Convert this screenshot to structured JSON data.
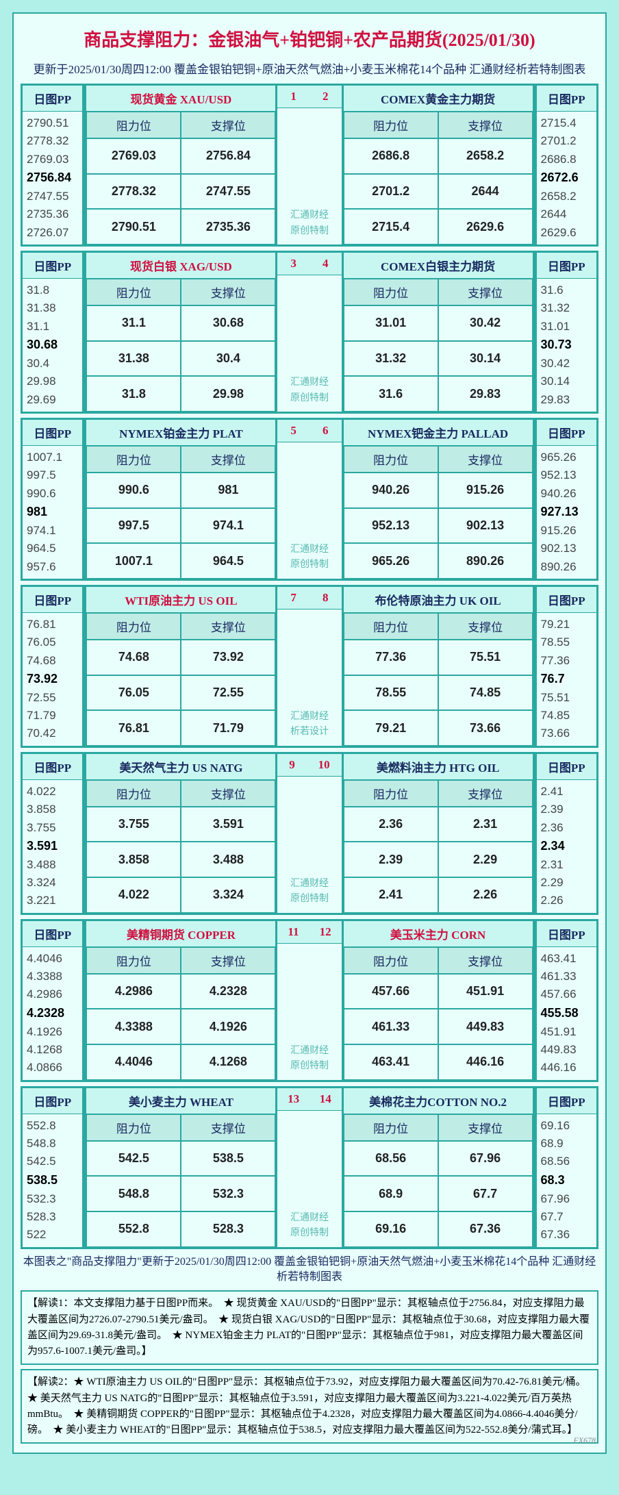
{
  "title": "商品支撑阻力：金银油气+铂钯铜+农产品期货(2025/01/30)",
  "subtitle": "更新于2025/01/30周四12:00  覆盖金银铂钯铜+原油天然气燃油+小麦玉米棉花14个品种  汇通财经析若特制图表",
  "footer_note": "本图表之\"商品支撑阻力\"更新于2025/01/30周四12:00 覆盖金银铂钯铜+原油天然气燃油+小麦玉米棉花14个品种 汇通财经析若特制图表",
  "labels": {
    "pp_header": "日图PP",
    "res": "阻力位",
    "sup": "支撑位",
    "wm1": "汇通财经",
    "wm2": "原创特制",
    "wm2b": "析若设计"
  },
  "br_watermark": "FX678",
  "pairs": [
    {
      "nums": [
        "1",
        "2"
      ],
      "left": {
        "name": "现货黄金 XAU/USD",
        "color": "red",
        "pp": [
          "2790.51",
          "2778.32",
          "2769.03",
          "2756.84",
          "2747.55",
          "2735.36",
          "2726.07"
        ],
        "pivot_idx": 3,
        "rows": [
          [
            "2769.03",
            "2756.84"
          ],
          [
            "2778.32",
            "2747.55"
          ],
          [
            "2790.51",
            "2735.36"
          ]
        ]
      },
      "right": {
        "name": "COMEX黄金主力期货",
        "color": "blue",
        "pp": [
          "2715.4",
          "2701.2",
          "2686.8",
          "2672.6",
          "2658.2",
          "2644",
          "2629.6"
        ],
        "pivot_idx": 3,
        "rows": [
          [
            "2686.8",
            "2658.2"
          ],
          [
            "2701.2",
            "2644"
          ],
          [
            "2715.4",
            "2629.6"
          ]
        ]
      },
      "wm2": "原创特制"
    },
    {
      "nums": [
        "3",
        "4"
      ],
      "left": {
        "name": "现货白银 XAG/USD",
        "color": "red",
        "pp": [
          "31.8",
          "31.38",
          "31.1",
          "30.68",
          "30.4",
          "29.98",
          "29.69"
        ],
        "pivot_idx": 3,
        "rows": [
          [
            "31.1",
            "30.68"
          ],
          [
            "31.38",
            "30.4"
          ],
          [
            "31.8",
            "29.98"
          ]
        ]
      },
      "right": {
        "name": "COMEX白银主力期货",
        "color": "blue",
        "pp": [
          "31.6",
          "31.32",
          "31.01",
          "30.73",
          "30.42",
          "30.14",
          "29.83"
        ],
        "pivot_idx": 3,
        "rows": [
          [
            "31.01",
            "30.42"
          ],
          [
            "31.32",
            "30.14"
          ],
          [
            "31.6",
            "29.83"
          ]
        ]
      },
      "wm2": "原创特制"
    },
    {
      "nums": [
        "5",
        "6"
      ],
      "left": {
        "name": "NYMEX铂金主力 PLAT",
        "color": "blue",
        "pp": [
          "1007.1",
          "997.5",
          "990.6",
          "981",
          "974.1",
          "964.5",
          "957.6"
        ],
        "pivot_idx": 3,
        "rows": [
          [
            "990.6",
            "981"
          ],
          [
            "997.5",
            "974.1"
          ],
          [
            "1007.1",
            "964.5"
          ]
        ]
      },
      "right": {
        "name": "NYMEX钯金主力 PALLAD",
        "color": "blue",
        "pp": [
          "965.26",
          "952.13",
          "940.26",
          "927.13",
          "915.26",
          "902.13",
          "890.26"
        ],
        "pivot_idx": 3,
        "rows": [
          [
            "940.26",
            "915.26"
          ],
          [
            "952.13",
            "902.13"
          ],
          [
            "965.26",
            "890.26"
          ]
        ]
      },
      "wm2": "原创特制"
    },
    {
      "nums": [
        "7",
        "8"
      ],
      "left": {
        "name": "WTI原油主力 US OIL",
        "color": "red",
        "pp": [
          "76.81",
          "76.05",
          "74.68",
          "73.92",
          "72.55",
          "71.79",
          "70.42"
        ],
        "pivot_idx": 3,
        "rows": [
          [
            "74.68",
            "73.92"
          ],
          [
            "76.05",
            "72.55"
          ],
          [
            "76.81",
            "71.79"
          ]
        ]
      },
      "right": {
        "name": "布伦特原油主力 UK OIL",
        "color": "blue",
        "pp": [
          "79.21",
          "78.55",
          "77.36",
          "76.7",
          "75.51",
          "74.85",
          "73.66"
        ],
        "pivot_idx": 3,
        "rows": [
          [
            "77.36",
            "75.51"
          ],
          [
            "78.55",
            "74.85"
          ],
          [
            "79.21",
            "73.66"
          ]
        ]
      },
      "wm2": "析若设计"
    },
    {
      "nums": [
        "9",
        "10"
      ],
      "left": {
        "name": "美天然气主力 US NATG",
        "color": "blue",
        "pp": [
          "4.022",
          "3.858",
          "3.755",
          "3.591",
          "3.488",
          "3.324",
          "3.221"
        ],
        "pivot_idx": 3,
        "rows": [
          [
            "3.755",
            "3.591"
          ],
          [
            "3.858",
            "3.488"
          ],
          [
            "4.022",
            "3.324"
          ]
        ]
      },
      "right": {
        "name": "美燃料油主力 HTG OIL",
        "color": "blue",
        "pp": [
          "2.41",
          "2.39",
          "2.36",
          "2.34",
          "2.31",
          "2.29",
          "2.26"
        ],
        "pivot_idx": 3,
        "rows": [
          [
            "2.36",
            "2.31"
          ],
          [
            "2.39",
            "2.29"
          ],
          [
            "2.41",
            "2.26"
          ]
        ]
      },
      "wm2": "原创特制"
    },
    {
      "nums": [
        "11",
        "12"
      ],
      "left": {
        "name": "美精铜期货 COPPER",
        "color": "red",
        "pp": [
          "4.4046",
          "4.3388",
          "4.2986",
          "4.2328",
          "4.1926",
          "4.1268",
          "4.0866"
        ],
        "pivot_idx": 3,
        "rows": [
          [
            "4.2986",
            "4.2328"
          ],
          [
            "4.3388",
            "4.1926"
          ],
          [
            "4.4046",
            "4.1268"
          ]
        ]
      },
      "right": {
        "name": "美玉米主力 CORN",
        "color": "red",
        "pp": [
          "463.41",
          "461.33",
          "457.66",
          "455.58",
          "451.91",
          "449.83",
          "446.16"
        ],
        "pivot_idx": 3,
        "rows": [
          [
            "457.66",
            "451.91"
          ],
          [
            "461.33",
            "449.83"
          ],
          [
            "463.41",
            "446.16"
          ]
        ]
      },
      "wm2": "原创特制"
    },
    {
      "nums": [
        "13",
        "14"
      ],
      "left": {
        "name": "美小麦主力 WHEAT",
        "color": "blue",
        "pp": [
          "552.8",
          "548.8",
          "542.5",
          "538.5",
          "532.3",
          "528.3",
          "522"
        ],
        "pivot_idx": 3,
        "rows": [
          [
            "542.5",
            "538.5"
          ],
          [
            "548.8",
            "532.3"
          ],
          [
            "552.8",
            "528.3"
          ]
        ]
      },
      "right": {
        "name": "美棉花主力COTTON NO.2",
        "color": "blue",
        "pp": [
          "69.16",
          "68.9",
          "68.56",
          "68.3",
          "67.96",
          "67.7",
          "67.36"
        ],
        "pivot_idx": 3,
        "rows": [
          [
            "68.56",
            "67.96"
          ],
          [
            "68.9",
            "67.7"
          ],
          [
            "69.16",
            "67.36"
          ]
        ]
      },
      "wm2": "原创特制"
    }
  ],
  "explain1": "【解读1：本文支撑阻力基于日图PP而来。　★ 现货黄金 XAU/USD的\"日图PP\"显示：其枢轴点位于2756.84，对应支撑阻力最大覆盖区间为2726.07-2790.51美元/盎司。　★ 现货白银 XAG/USD的\"日图PP\"显示：其枢轴点位于30.68，对应支撑阻力最大覆盖区间为29.69-31.8美元/盎司。　★ NYMEX铂金主力 PLAT的\"日图PP\"显示：其枢轴点位于981，对应支撑阻力最大覆盖区间为957.6-1007.1美元/盎司。】",
  "explain2": "【解读2：★ WTI原油主力 US OIL的\"日图PP\"显示：其枢轴点位于73.92，对应支撑阻力最大覆盖区间为70.42-76.81美元/桶。　★ 美天然气主力 US NATG的\"日图PP\"显示：其枢轴点位于3.591，对应支撑阻力最大覆盖区间为3.221-4.022美元/百万英热mmBtu。　★ 美精铜期货 COPPER的\"日图PP\"显示：其枢轴点位于4.2328，对应支撑阻力最大覆盖区间为4.0866-4.4046美分/磅。　★ 美小麦主力 WHEAT的\"日图PP\"显示：其枢轴点位于538.5，对应支撑阻力最大覆盖区间为522-552.8美分/蒲式耳。】"
}
